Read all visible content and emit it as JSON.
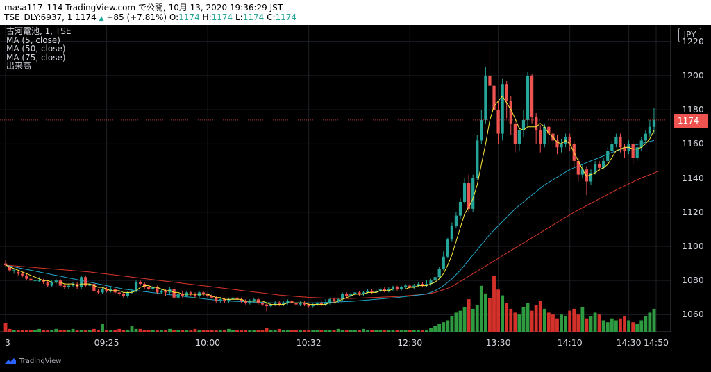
{
  "header": {
    "line1": "masa117_114 TradingView.com で公開, 10月 13, 2020 19:36:29 JST",
    "symbol": "TSE_DLY:6937, 1 1174",
    "change": "+85 (+7.81%)",
    "o_label": "O:",
    "o_value": "1174",
    "h_label": "H:",
    "h_value": "1174",
    "l_label": "L:",
    "l_value": "1174",
    "c_label": "C:",
    "c_value": "1174"
  },
  "legend": {
    "title": "古河電池, 1, TSE",
    "ma5": "MA (5, close)",
    "ma50": "MA (50, close)",
    "ma75": "MA (75, close)",
    "volume": "出来高"
  },
  "currency_button": "JPY",
  "last_price": "1174",
  "footer_brand": "TradingView",
  "colors": {
    "up": "#26a69a",
    "down": "#ef5350",
    "ma5": "#ffeb3b",
    "ma50": "#1fa6c8",
    "ma75": "#d9362b",
    "vol_up": "#2e9b41",
    "vol_down": "#d5312b"
  },
  "chart_data": {
    "type": "candlestick",
    "ylim": [
      1050,
      1228
    ],
    "yticks": [
      "1220",
      "1200",
      "1180",
      "1160",
      "1140",
      "1120",
      "1100",
      "1080",
      "1060"
    ],
    "xticks": [
      "3",
      "09:25",
      "10:00",
      "10:32",
      "12:30",
      "13:30",
      "14:10",
      "14:30",
      "14:50"
    ],
    "last_price": 1174,
    "candles": [
      [
        1090,
        1089,
        1088,
        1092
      ],
      [
        1088,
        1086,
        1085,
        1089
      ],
      [
        1086,
        1086,
        1084,
        1087
      ],
      [
        1085,
        1084,
        1083,
        1086
      ],
      [
        1084,
        1083,
        1082,
        1085
      ],
      [
        1083,
        1081,
        1080,
        1084
      ],
      [
        1081,
        1080,
        1079,
        1082
      ],
      [
        1080,
        1080,
        1079,
        1081
      ],
      [
        1080,
        1080,
        1079,
        1082
      ],
      [
        1080,
        1079,
        1078,
        1081
      ],
      [
        1079,
        1077,
        1076,
        1080
      ],
      [
        1077,
        1079,
        1076,
        1080
      ],
      [
        1079,
        1080,
        1078,
        1081
      ],
      [
        1080,
        1077,
        1076,
        1081
      ],
      [
        1077,
        1076,
        1075,
        1078
      ],
      [
        1076,
        1077,
        1075,
        1078
      ],
      [
        1077,
        1078,
        1076,
        1079
      ],
      [
        1078,
        1076,
        1075,
        1079
      ],
      [
        1076,
        1082,
        1075,
        1083
      ],
      [
        1082,
        1077,
        1076,
        1083
      ],
      [
        1077,
        1078,
        1076,
        1079
      ],
      [
        1078,
        1074,
        1073,
        1079
      ],
      [
        1074,
        1073,
        1072,
        1075
      ],
      [
        1073,
        1075,
        1072,
        1076
      ],
      [
        1075,
        1074,
        1073,
        1076
      ],
      [
        1074,
        1075,
        1073,
        1076
      ],
      [
        1075,
        1073,
        1072,
        1076
      ],
      [
        1073,
        1072,
        1071,
        1074
      ],
      [
        1072,
        1071,
        1070,
        1073
      ],
      [
        1071,
        1073,
        1070,
        1074
      ],
      [
        1073,
        1074,
        1072,
        1075
      ],
      [
        1074,
        1079,
        1073,
        1080
      ],
      [
        1079,
        1078,
        1077,
        1080
      ],
      [
        1078,
        1076,
        1075,
        1079
      ],
      [
        1076,
        1075,
        1074,
        1077
      ],
      [
        1075,
        1076,
        1074,
        1077
      ],
      [
        1076,
        1073,
        1072,
        1077
      ],
      [
        1073,
        1074,
        1072,
        1075
      ],
      [
        1074,
        1073,
        1071,
        1075
      ],
      [
        1073,
        1075,
        1072,
        1076
      ],
      [
        1075,
        1070,
        1069,
        1076
      ],
      [
        1070,
        1072,
        1069,
        1073
      ],
      [
        1072,
        1071,
        1070,
        1074
      ],
      [
        1071,
        1073,
        1070,
        1074
      ],
      [
        1073,
        1072,
        1071,
        1074
      ],
      [
        1072,
        1071,
        1070,
        1073
      ],
      [
        1071,
        1073,
        1070,
        1074
      ],
      [
        1073,
        1072,
        1071,
        1074
      ],
      [
        1072,
        1071,
        1070,
        1073
      ],
      [
        1071,
        1070,
        1069,
        1072
      ],
      [
        1070,
        1068,
        1067,
        1071
      ],
      [
        1068,
        1069,
        1067,
        1070
      ],
      [
        1069,
        1068,
        1067,
        1070
      ],
      [
        1068,
        1069,
        1067,
        1070
      ],
      [
        1069,
        1070,
        1068,
        1071
      ],
      [
        1070,
        1069,
        1068,
        1071
      ],
      [
        1069,
        1068,
        1067,
        1070
      ],
      [
        1068,
        1067,
        1066,
        1069
      ],
      [
        1067,
        1068,
        1066,
        1069
      ],
      [
        1068,
        1069,
        1067,
        1070
      ],
      [
        1069,
        1067,
        1066,
        1070
      ],
      [
        1067,
        1066,
        1065,
        1068
      ],
      [
        1066,
        1065,
        1062,
        1067
      ],
      [
        1065,
        1066,
        1064,
        1067
      ],
      [
        1066,
        1067,
        1065,
        1068
      ],
      [
        1067,
        1066,
        1065,
        1068
      ],
      [
        1066,
        1067,
        1065,
        1068
      ],
      [
        1067,
        1068,
        1066,
        1069
      ],
      [
        1068,
        1067,
        1066,
        1069
      ],
      [
        1067,
        1066,
        1065,
        1068
      ],
      [
        1066,
        1067,
        1065,
        1068
      ],
      [
        1067,
        1066,
        1065,
        1068
      ],
      [
        1066,
        1065,
        1064,
        1067
      ],
      [
        1065,
        1066,
        1064,
        1067
      ],
      [
        1066,
        1067,
        1065,
        1068
      ],
      [
        1067,
        1066,
        1065,
        1068
      ],
      [
        1066,
        1067,
        1065,
        1069
      ],
      [
        1067,
        1069,
        1066,
        1070
      ],
      [
        1069,
        1068,
        1067,
        1070
      ],
      [
        1068,
        1069,
        1067,
        1070
      ],
      [
        1069,
        1072,
        1068,
        1073
      ],
      [
        1072,
        1071,
        1070,
        1073
      ],
      [
        1071,
        1072,
        1070,
        1073
      ],
      [
        1072,
        1073,
        1071,
        1074
      ],
      [
        1073,
        1072,
        1071,
        1074
      ],
      [
        1072,
        1073,
        1071,
        1074
      ],
      [
        1073,
        1074,
        1072,
        1075
      ],
      [
        1074,
        1073,
        1072,
        1075
      ],
      [
        1073,
        1074,
        1072,
        1075
      ],
      [
        1074,
        1075,
        1073,
        1076
      ],
      [
        1075,
        1074,
        1073,
        1076
      ],
      [
        1074,
        1075,
        1073,
        1076
      ],
      [
        1075,
        1076,
        1074,
        1077
      ],
      [
        1076,
        1075,
        1074,
        1077
      ],
      [
        1075,
        1076,
        1074,
        1077
      ],
      [
        1076,
        1077,
        1075,
        1078
      ],
      [
        1077,
        1076,
        1075,
        1078
      ],
      [
        1076,
        1077,
        1075,
        1078
      ],
      [
        1077,
        1078,
        1076,
        1079
      ],
      [
        1078,
        1077,
        1076,
        1079
      ],
      [
        1077,
        1078,
        1076,
        1080
      ],
      [
        1078,
        1080,
        1077,
        1081
      ],
      [
        1080,
        1082,
        1079,
        1083
      ],
      [
        1082,
        1087,
        1081,
        1088
      ],
      [
        1087,
        1094,
        1086,
        1097
      ],
      [
        1094,
        1104,
        1093,
        1105
      ],
      [
        1104,
        1112,
        1103,
        1114
      ],
      [
        1112,
        1118,
        1111,
        1120
      ],
      [
        1118,
        1126,
        1116,
        1128
      ],
      [
        1126,
        1137,
        1125,
        1140
      ],
      [
        1137,
        1122,
        1120,
        1142
      ],
      [
        1122,
        1140,
        1120,
        1142
      ],
      [
        1140,
        1162,
        1139,
        1165
      ],
      [
        1162,
        1174,
        1160,
        1180
      ],
      [
        1174,
        1200,
        1172,
        1205
      ],
      [
        1200,
        1194,
        1190,
        1222
      ],
      [
        1194,
        1180,
        1165,
        1196
      ],
      [
        1180,
        1166,
        1160,
        1185
      ],
      [
        1166,
        1195,
        1162,
        1198
      ],
      [
        1195,
        1185,
        1175,
        1197
      ],
      [
        1185,
        1172,
        1165,
        1188
      ],
      [
        1172,
        1160,
        1155,
        1175
      ],
      [
        1160,
        1168,
        1156,
        1170
      ],
      [
        1168,
        1174,
        1164,
        1180
      ],
      [
        1174,
        1200,
        1170,
        1202
      ],
      [
        1200,
        1176,
        1172,
        1201
      ],
      [
        1176,
        1168,
        1160,
        1178
      ],
      [
        1168,
        1160,
        1155,
        1171
      ],
      [
        1160,
        1170,
        1158,
        1172
      ],
      [
        1170,
        1166,
        1160,
        1172
      ],
      [
        1166,
        1162,
        1158,
        1168
      ],
      [
        1162,
        1158,
        1154,
        1165
      ],
      [
        1158,
        1160,
        1155,
        1163
      ],
      [
        1160,
        1164,
        1158,
        1166
      ],
      [
        1164,
        1160,
        1156,
        1166
      ],
      [
        1160,
        1150,
        1146,
        1162
      ],
      [
        1150,
        1142,
        1138,
        1152
      ],
      [
        1142,
        1145,
        1140,
        1148
      ],
      [
        1145,
        1138,
        1130,
        1147
      ],
      [
        1138,
        1143,
        1136,
        1145
      ],
      [
        1143,
        1148,
        1142,
        1150
      ],
      [
        1148,
        1146,
        1144,
        1150
      ],
      [
        1146,
        1150,
        1145,
        1152
      ],
      [
        1150,
        1156,
        1149,
        1158
      ],
      [
        1156,
        1160,
        1155,
        1162
      ],
      [
        1160,
        1164,
        1158,
        1166
      ],
      [
        1164,
        1158,
        1155,
        1166
      ],
      [
        1158,
        1156,
        1152,
        1160
      ],
      [
        1156,
        1160,
        1154,
        1162
      ],
      [
        1160,
        1152,
        1148,
        1162
      ],
      [
        1152,
        1158,
        1150,
        1160
      ],
      [
        1158,
        1162,
        1156,
        1164
      ],
      [
        1162,
        1166,
        1160,
        1168
      ],
      [
        1166,
        1170,
        1164,
        1174
      ],
      [
        1170,
        1174,
        1166,
        1181
      ]
    ],
    "ma5": [
      1089,
      1088,
      1087,
      1086,
      1085,
      1084,
      1083,
      1082,
      1081,
      1080,
      1080,
      1079,
      1079,
      1079,
      1078,
      1078,
      1078,
      1077,
      1078,
      1078,
      1078,
      1077,
      1076,
      1076,
      1075,
      1074,
      1074,
      1074,
      1073,
      1073,
      1073,
      1074,
      1076,
      1077,
      1077,
      1076,
      1076,
      1075,
      1074,
      1074,
      1073,
      1073,
      1072,
      1072,
      1072,
      1072,
      1072,
      1072,
      1072,
      1071,
      1070,
      1070,
      1069,
      1069,
      1069,
      1069,
      1069,
      1068,
      1068,
      1068,
      1068,
      1068,
      1067,
      1066,
      1066,
      1066,
      1066,
      1067,
      1067,
      1067,
      1067,
      1067,
      1066,
      1066,
      1066,
      1066,
      1066,
      1067,
      1067,
      1068,
      1069,
      1070,
      1071,
      1072,
      1072,
      1072,
      1073,
      1073,
      1073,
      1074,
      1074,
      1074,
      1075,
      1075,
      1075,
      1075,
      1076,
      1076,
      1077,
      1077,
      1077,
      1078,
      1079,
      1081,
      1084,
      1089,
      1095,
      1103,
      1111,
      1119,
      1123,
      1128,
      1136,
      1148,
      1160,
      1174,
      1182,
      1185,
      1188,
      1184,
      1180,
      1175,
      1169,
      1168,
      1170,
      1170,
      1170,
      1172,
      1170,
      1166,
      1164,
      1161,
      1160,
      1162,
      1160,
      1155,
      1150,
      1145,
      1141,
      1142,
      1143,
      1145,
      1146,
      1148,
      1152,
      1156,
      1157,
      1158,
      1158,
      1157,
      1157,
      1158,
      1160,
      1163,
      1168
    ],
    "ma50": [
      1089,
      1088.5,
      1088,
      1087.5,
      1087,
      1086.5,
      1086,
      1085.5,
      1085,
      1084.5,
      1084,
      1083.5,
      1083,
      1082.5,
      1082,
      1081.5,
      1081,
      1080.5,
      1080,
      1079.5,
      1079,
      1078.5,
      1078,
      1077.5,
      1077,
      1076.5,
      1076,
      1075.5,
      1075,
      1074.7,
      1074.4,
      1074.1,
      1073.8,
      1073.5,
      1073.2,
      1072.9,
      1072.6,
      1072.3,
      1072,
      1071.7,
      1071.4,
      1071.1,
      1070.8,
      1070.5,
      1070.2,
      1069.9,
      1069.6,
      1069.3,
      1069,
      1068.8,
      1068.6,
      1068.4,
      1068.2,
      1068,
      1067.9,
      1067.8,
      1067.7,
      1067.6,
      1067.5,
      1067.4,
      1067.3,
      1067.2,
      1067.1,
      1067,
      1067,
      1067,
      1067,
      1067,
      1067,
      1067,
      1067,
      1067,
      1067,
      1067,
      1067,
      1067.1,
      1067.2,
      1067.3,
      1067.4,
      1067.5,
      1067.6,
      1067.7,
      1067.8,
      1068,
      1068.2,
      1068.4,
      1068.6,
      1068.8,
      1069,
      1069.2,
      1069.4,
      1069.6,
      1069.8,
      1070,
      1070.3,
      1070.6,
      1070.9,
      1071.2,
      1071.5,
      1071.8,
      1072.2,
      1073,
      1074,
      1075.5,
      1077,
      1079,
      1081,
      1083.5,
      1086,
      1089,
      1092,
      1095,
      1098,
      1101,
      1104,
      1107,
      1109.5,
      1112,
      1114.5,
      1117,
      1119.5,
      1122,
      1124,
      1126,
      1128,
      1130,
      1132,
      1134,
      1136,
      1137.5,
      1139,
      1140.5,
      1142,
      1143.5,
      1145,
      1146,
      1147,
      1148,
      1149,
      1150,
      1151,
      1152,
      1153,
      1154,
      1155,
      1155.8,
      1156.6,
      1157.4,
      1158.2,
      1159,
      1159.6,
      1160.2,
      1160.8,
      1161.4,
      1162
    ],
    "ma75": [
      1089,
      1088.8,
      1088.6,
      1088.4,
      1088.2,
      1088,
      1087.8,
      1087.6,
      1087.4,
      1087.2,
      1087,
      1086.8,
      1086.6,
      1086.4,
      1086.2,
      1086,
      1085.8,
      1085.6,
      1085.4,
      1085.2,
      1085,
      1084.7,
      1084.4,
      1084.1,
      1083.8,
      1083.5,
      1083.2,
      1082.9,
      1082.6,
      1082.3,
      1082,
      1081.7,
      1081.4,
      1081.1,
      1080.8,
      1080.5,
      1080.2,
      1079.9,
      1079.6,
      1079.3,
      1079,
      1078.7,
      1078.4,
      1078.1,
      1077.8,
      1077.5,
      1077.2,
      1076.9,
      1076.6,
      1076.3,
      1076,
      1075.7,
      1075.4,
      1075.1,
      1074.8,
      1074.5,
      1074.2,
      1073.9,
      1073.6,
      1073.3,
      1073,
      1072.7,
      1072.4,
      1072.1,
      1071.8,
      1071.5,
      1071.3,
      1071.1,
      1070.9,
      1070.7,
      1070.5,
      1070.3,
      1070.1,
      1070,
      1069.9,
      1069.8,
      1069.7,
      1069.6,
      1069.5,
      1069.5,
      1069.5,
      1069.5,
      1069.5,
      1069.6,
      1069.7,
      1069.8,
      1069.9,
      1070,
      1070.1,
      1070.2,
      1070.3,
      1070.4,
      1070.5,
      1070.6,
      1070.8,
      1071,
      1071.2,
      1071.4,
      1071.6,
      1071.8,
      1072,
      1072.5,
      1073,
      1073.8,
      1074.6,
      1075.5,
      1076.5,
      1078,
      1079.5,
      1081,
      1082.5,
      1084,
      1085.5,
      1087,
      1088.5,
      1090,
      1091.5,
      1093,
      1094.5,
      1096,
      1097.5,
      1099,
      1100.5,
      1102,
      1103.5,
      1105,
      1106.5,
      1108,
      1109.5,
      1111,
      1112.5,
      1114,
      1115.5,
      1117,
      1118.5,
      1120,
      1121.3,
      1122.6,
      1123.9,
      1125.2,
      1126.5,
      1127.8,
      1129.1,
      1130.4,
      1131.7,
      1133,
      1134.2,
      1135.4,
      1136.6,
      1137.8,
      1139,
      1140,
      1141,
      1142,
      1143,
      1144
    ],
    "volumes": [
      9,
      3,
      2,
      2,
      2,
      2,
      2,
      2,
      3,
      2,
      2,
      2,
      3,
      2,
      2,
      2,
      3,
      2,
      2,
      2,
      2,
      3,
      2,
      8,
      2,
      2,
      2,
      3,
      2,
      2,
      6,
      3,
      3,
      2,
      2,
      2,
      2,
      2,
      2,
      3,
      2,
      2,
      2,
      2,
      2,
      3,
      2,
      2,
      2,
      2,
      2,
      2,
      2,
      3,
      2,
      2,
      2,
      2,
      2,
      2,
      2,
      2,
      4,
      2,
      2,
      3,
      2,
      2,
      2,
      2,
      2,
      2,
      2,
      2,
      2,
      2,
      2,
      2,
      2,
      3,
      2,
      2,
      2,
      2,
      2,
      3,
      2,
      2,
      2,
      2,
      2,
      2,
      2,
      2,
      2,
      2,
      2,
      2,
      2,
      2,
      2,
      4,
      6,
      8,
      10,
      12,
      16,
      20,
      22,
      26,
      34,
      24,
      28,
      48,
      40,
      35,
      58,
      44,
      38,
      30,
      24,
      20,
      18,
      26,
      30,
      22,
      28,
      32,
      24,
      20,
      18,
      14,
      18,
      16,
      22,
      24,
      18,
      26,
      14,
      16,
      20,
      18,
      12,
      10,
      14,
      12,
      14,
      16,
      12,
      10,
      8,
      12,
      16,
      20,
      24
    ]
  }
}
